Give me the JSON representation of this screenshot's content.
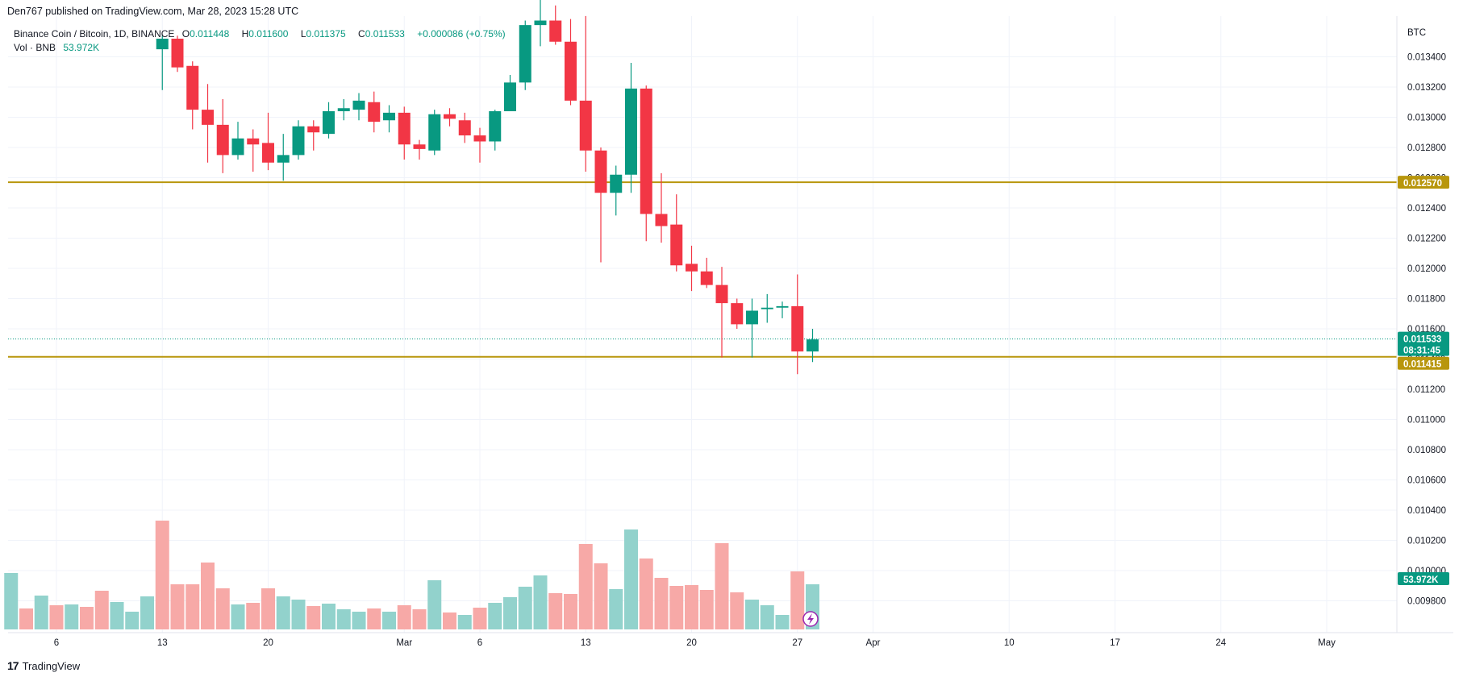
{
  "header": {
    "publisher_line": "Den767 published on TradingView.com, Mar 28, 2023 15:28 UTC"
  },
  "legend": {
    "symbol": "Binance Coin / Bitcoin, 1D, BINANCE",
    "open": "0.011448",
    "high": "0.011600",
    "low": "0.011375",
    "close": "0.011533",
    "change": "+0.000086 (+0.75%)",
    "vol_label": "Vol · BNB",
    "vol_value": "53.972K"
  },
  "footer": {
    "brand": "TradingView"
  },
  "colors": {
    "up": "#089981",
    "down": "#f23645",
    "vol_up": "#92d2cc",
    "vol_down": "#f7a9a7",
    "level": "#b8960c",
    "grid": "#f0f3fa"
  },
  "chart_data": {
    "type": "candlestick",
    "currency_label": "BTC",
    "y_ticks": [
      "0.013400",
      "0.013200",
      "0.013000",
      "0.012800",
      "0.012600",
      "0.012400",
      "0.012200",
      "0.012000",
      "0.011800",
      "0.011600",
      "0.011400",
      "0.011200",
      "0.011000",
      "0.010800",
      "0.010600",
      "0.010400",
      "0.010200",
      "0.010000",
      "0.009800"
    ],
    "x_ticks": [
      {
        "label": "6",
        "day": 6
      },
      {
        "label": "13",
        "day": 13
      },
      {
        "label": "20",
        "day": 20
      },
      {
        "label": "Mar",
        "day": 29
      },
      {
        "label": "6",
        "day": 34
      },
      {
        "label": "13",
        "day": 41
      },
      {
        "label": "20",
        "day": 48
      },
      {
        "label": "27",
        "day": 55
      },
      {
        "label": "Apr",
        "day": 60
      },
      {
        "label": "10",
        "day": 69
      },
      {
        "label": "17",
        "day": 76
      },
      {
        "label": "24",
        "day": 83
      },
      {
        "label": "May",
        "day": 90
      }
    ],
    "candles": [
      {
        "day": 13,
        "o": 0.01345,
        "h": 0.01354,
        "l": 0.01318,
        "c": 0.01352
      },
      {
        "day": 14,
        "o": 0.01352,
        "h": 0.01354,
        "l": 0.0133,
        "c": 0.01333
      },
      {
        "day": 15,
        "o": 0.01334,
        "h": 0.01337,
        "l": 0.01292,
        "c": 0.01305
      },
      {
        "day": 16,
        "o": 0.01305,
        "h": 0.01322,
        "l": 0.0127,
        "c": 0.01295
      },
      {
        "day": 17,
        "o": 0.01295,
        "h": 0.01312,
        "l": 0.01263,
        "c": 0.01275
      },
      {
        "day": 18,
        "o": 0.01275,
        "h": 0.01297,
        "l": 0.01272,
        "c": 0.01286
      },
      {
        "day": 19,
        "o": 0.01286,
        "h": 0.01292,
        "l": 0.01264,
        "c": 0.01282
      },
      {
        "day": 20,
        "o": 0.01283,
        "h": 0.01303,
        "l": 0.01265,
        "c": 0.0127
      },
      {
        "day": 21,
        "o": 0.0127,
        "h": 0.01289,
        "l": 0.01258,
        "c": 0.01275
      },
      {
        "day": 22,
        "o": 0.01275,
        "h": 0.01298,
        "l": 0.01272,
        "c": 0.01294
      },
      {
        "day": 23,
        "o": 0.01294,
        "h": 0.01298,
        "l": 0.01278,
        "c": 0.0129
      },
      {
        "day": 24,
        "o": 0.01289,
        "h": 0.0131,
        "l": 0.01286,
        "c": 0.01304
      },
      {
        "day": 25,
        "o": 0.01304,
        "h": 0.01312,
        "l": 0.01298,
        "c": 0.01306
      },
      {
        "day": 26,
        "o": 0.01305,
        "h": 0.01316,
        "l": 0.01298,
        "c": 0.01311
      },
      {
        "day": 27,
        "o": 0.0131,
        "h": 0.01317,
        "l": 0.0129,
        "c": 0.01297
      },
      {
        "day": 28,
        "o": 0.01298,
        "h": 0.01308,
        "l": 0.0129,
        "c": 0.01303
      },
      {
        "day": 29,
        "o": 0.01303,
        "h": 0.01307,
        "l": 0.01272,
        "c": 0.01282
      },
      {
        "day": 30,
        "o": 0.01282,
        "h": 0.01285,
        "l": 0.01272,
        "c": 0.01279
      },
      {
        "day": 31,
        "o": 0.01278,
        "h": 0.01305,
        "l": 0.01275,
        "c": 0.01302
      },
      {
        "day": 32,
        "o": 0.01302,
        "h": 0.01306,
        "l": 0.01294,
        "c": 0.01299
      },
      {
        "day": 33,
        "o": 0.01298,
        "h": 0.01303,
        "l": 0.01283,
        "c": 0.01288
      },
      {
        "day": 34,
        "o": 0.01288,
        "h": 0.01293,
        "l": 0.0127,
        "c": 0.01284
      },
      {
        "day": 35,
        "o": 0.01284,
        "h": 0.01305,
        "l": 0.01278,
        "c": 0.01304
      },
      {
        "day": 36,
        "o": 0.01304,
        "h": 0.01328,
        "l": 0.01304,
        "c": 0.01323
      },
      {
        "day": 37,
        "o": 0.01323,
        "h": 0.01364,
        "l": 0.01318,
        "c": 0.01361
      },
      {
        "day": 38,
        "o": 0.01361,
        "h": 0.01385,
        "l": 0.01347,
        "c": 0.01364
      },
      {
        "day": 39,
        "o": 0.01364,
        "h": 0.01374,
        "l": 0.01348,
        "c": 0.0135
      },
      {
        "day": 40,
        "o": 0.0135,
        "h": 0.01365,
        "l": 0.01308,
        "c": 0.01311
      },
      {
        "day": 41,
        "o": 0.01311,
        "h": 0.01367,
        "l": 0.01264,
        "c": 0.01278
      },
      {
        "day": 42,
        "o": 0.01278,
        "h": 0.0128,
        "l": 0.01204,
        "c": 0.0125
      },
      {
        "day": 43,
        "o": 0.0125,
        "h": 0.01268,
        "l": 0.01235,
        "c": 0.01262
      },
      {
        "day": 44,
        "o": 0.01262,
        "h": 0.01336,
        "l": 0.0125,
        "c": 0.01319
      },
      {
        "day": 45,
        "o": 0.01319,
        "h": 0.01321,
        "l": 0.01218,
        "c": 0.01236
      },
      {
        "day": 46,
        "o": 0.01236,
        "h": 0.01263,
        "l": 0.01217,
        "c": 0.01228
      },
      {
        "day": 47,
        "o": 0.01229,
        "h": 0.01249,
        "l": 0.01198,
        "c": 0.01202
      },
      {
        "day": 48,
        "o": 0.01203,
        "h": 0.01215,
        "l": 0.01185,
        "c": 0.01198
      },
      {
        "day": 49,
        "o": 0.01198,
        "h": 0.01207,
        "l": 0.01187,
        "c": 0.01189
      },
      {
        "day": 50,
        "o": 0.01189,
        "h": 0.01201,
        "l": 0.01141,
        "c": 0.01177
      },
      {
        "day": 51,
        "o": 0.01177,
        "h": 0.0118,
        "l": 0.0116,
        "c": 0.01163
      },
      {
        "day": 52,
        "o": 0.01163,
        "h": 0.0118,
        "l": 0.01141,
        "c": 0.01172
      },
      {
        "day": 53,
        "o": 0.01173,
        "h": 0.01183,
        "l": 0.01164,
        "c": 0.01174
      },
      {
        "day": 54,
        "o": 0.01174,
        "h": 0.01178,
        "l": 0.01167,
        "c": 0.01175
      },
      {
        "day": 55,
        "o": 0.01175,
        "h": 0.01196,
        "l": 0.0113,
        "c": 0.01145
      },
      {
        "day": 56,
        "o": 0.01145,
        "h": 0.0116,
        "l": 0.01138,
        "c": 0.01153
      }
    ],
    "volumes": [
      {
        "day": 3,
        "v": 70,
        "up": true
      },
      {
        "day": 4,
        "v": 26,
        "up": false
      },
      {
        "day": 5,
        "v": 42,
        "up": true
      },
      {
        "day": 6,
        "v": 30,
        "up": false
      },
      {
        "day": 7,
        "v": 31,
        "up": true
      },
      {
        "day": 8,
        "v": 28,
        "up": false
      },
      {
        "day": 9,
        "v": 48,
        "up": false
      },
      {
        "day": 10,
        "v": 34,
        "up": true
      },
      {
        "day": 11,
        "v": 22,
        "up": true
      },
      {
        "day": 12,
        "v": 41,
        "up": true
      },
      {
        "day": 13,
        "v": 135,
        "up": false
      },
      {
        "day": 14,
        "v": 56,
        "up": false
      },
      {
        "day": 15,
        "v": 56,
        "up": false
      },
      {
        "day": 16,
        "v": 83,
        "up": false
      },
      {
        "day": 17,
        "v": 51,
        "up": false
      },
      {
        "day": 18,
        "v": 31,
        "up": true
      },
      {
        "day": 19,
        "v": 33,
        "up": false
      },
      {
        "day": 20,
        "v": 51,
        "up": false
      },
      {
        "day": 21,
        "v": 41,
        "up": true
      },
      {
        "day": 22,
        "v": 37,
        "up": true
      },
      {
        "day": 23,
        "v": 29,
        "up": false
      },
      {
        "day": 24,
        "v": 32,
        "up": true
      },
      {
        "day": 25,
        "v": 25,
        "up": true
      },
      {
        "day": 26,
        "v": 22,
        "up": true
      },
      {
        "day": 27,
        "v": 26,
        "up": false
      },
      {
        "day": 28,
        "v": 22,
        "up": true
      },
      {
        "day": 29,
        "v": 30,
        "up": false
      },
      {
        "day": 30,
        "v": 25,
        "up": false
      },
      {
        "day": 31,
        "v": 61,
        "up": true
      },
      {
        "day": 32,
        "v": 21,
        "up": false
      },
      {
        "day": 33,
        "v": 18,
        "up": true
      },
      {
        "day": 34,
        "v": 27,
        "up": false
      },
      {
        "day": 35,
        "v": 33,
        "up": true
      },
      {
        "day": 36,
        "v": 40,
        "up": true
      },
      {
        "day": 37,
        "v": 53,
        "up": true
      },
      {
        "day": 38,
        "v": 67,
        "up": true
      },
      {
        "day": 39,
        "v": 45,
        "up": false
      },
      {
        "day": 40,
        "v": 44,
        "up": false
      },
      {
        "day": 41,
        "v": 106,
        "up": false
      },
      {
        "day": 42,
        "v": 82,
        "up": false
      },
      {
        "day": 43,
        "v": 50,
        "up": true
      },
      {
        "day": 44,
        "v": 124,
        "up": true
      },
      {
        "day": 45,
        "v": 88,
        "up": false
      },
      {
        "day": 46,
        "v": 64,
        "up": false
      },
      {
        "day": 47,
        "v": 54,
        "up": false
      },
      {
        "day": 48,
        "v": 55,
        "up": false
      },
      {
        "day": 49,
        "v": 49,
        "up": false
      },
      {
        "day": 50,
        "v": 107,
        "up": false
      },
      {
        "day": 51,
        "v": 46,
        "up": false
      },
      {
        "day": 52,
        "v": 37,
        "up": true
      },
      {
        "day": 53,
        "v": 30,
        "up": true
      },
      {
        "day": 54,
        "v": 18,
        "up": true
      },
      {
        "day": 55,
        "v": 72,
        "up": false
      },
      {
        "day": 56,
        "v": 56,
        "up": true
      }
    ],
    "levels": [
      {
        "price": 0.01257,
        "label": "0.012570"
      },
      {
        "price": 0.011415,
        "label": "0.011415"
      }
    ],
    "current_price": {
      "price": 0.011533,
      "label": "0.011533",
      "countdown": "08:31:45"
    },
    "volume_tag": "53.972K"
  }
}
